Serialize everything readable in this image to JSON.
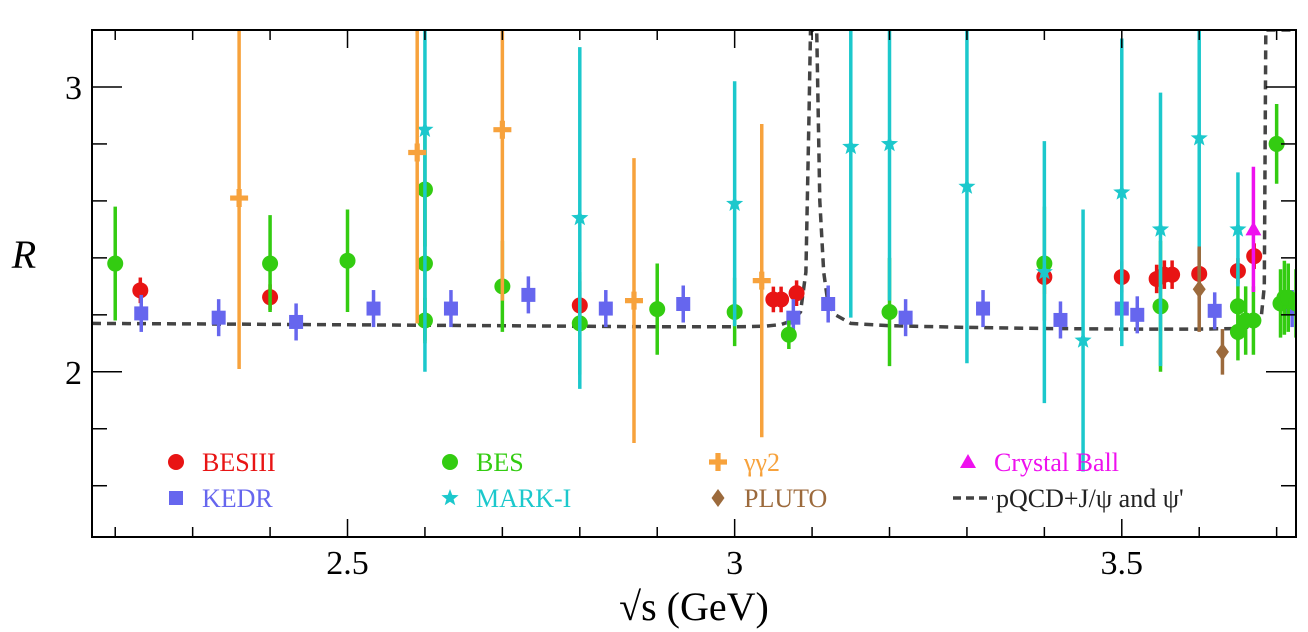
{
  "chart_data": {
    "type": "scatter",
    "title": "",
    "xlabel": "√s (GeV)",
    "ylabel": "R",
    "xlim": [
      2.17,
      3.725
    ],
    "ylim": [
      1.42,
      3.2
    ],
    "xticks": [
      {
        "value": 2.5,
        "label": "2.5"
      },
      {
        "value": 3.0,
        "label": "3"
      },
      {
        "value": 3.5,
        "label": "3.5"
      }
    ],
    "yticks": [
      {
        "value": 2.0,
        "label": "2"
      },
      {
        "value": 3.0,
        "label": "3"
      }
    ],
    "grid": false,
    "legend_position": "bottom",
    "series": [
      {
        "name": "BESIII",
        "color": "#e81414",
        "marker": "circle",
        "points": [
          {
            "x": 2.2324,
            "y": 2.286,
            "err": 0.045
          },
          {
            "x": 2.4,
            "y": 2.262,
            "err": 0.045
          },
          {
            "x": 2.8,
            "y": 2.233,
            "err": 0.085
          },
          {
            "x": 3.05,
            "y": 2.254,
            "err": 0.045
          },
          {
            "x": 3.06,
            "y": 2.254,
            "err": 0.045
          },
          {
            "x": 3.08,
            "y": 2.276,
            "err": 0.045
          },
          {
            "x": 3.4,
            "y": 2.333,
            "err": 0.06
          },
          {
            "x": 3.5,
            "y": 2.333,
            "err": 0.055
          },
          {
            "x": 3.545,
            "y": 2.326,
            "err": 0.05
          },
          {
            "x": 3.555,
            "y": 2.341,
            "err": 0.05
          },
          {
            "x": 3.565,
            "y": 2.341,
            "err": 0.05
          },
          {
            "x": 3.6,
            "y": 2.344,
            "err": 0.09
          },
          {
            "x": 3.65,
            "y": 2.354,
            "err": 0.045
          },
          {
            "x": 3.671,
            "y": 2.406,
            "err": 0.045
          }
        ]
      },
      {
        "name": "KEDR",
        "color": "#6666ee",
        "marker": "square",
        "points": [
          {
            "x": 2.2336,
            "y": 2.205,
            "err": 0.065
          },
          {
            "x": 2.3336,
            "y": 2.19,
            "err": 0.065
          },
          {
            "x": 2.4336,
            "y": 2.175,
            "err": 0.065
          },
          {
            "x": 2.5336,
            "y": 2.222,
            "err": 0.065
          },
          {
            "x": 2.6336,
            "y": 2.222,
            "err": 0.065
          },
          {
            "x": 2.7336,
            "y": 2.27,
            "err": 0.065
          },
          {
            "x": 2.8336,
            "y": 2.222,
            "err": 0.065
          },
          {
            "x": 2.9336,
            "y": 2.238,
            "err": 0.065
          },
          {
            "x": 3.0758,
            "y": 2.19,
            "err": 0.065
          },
          {
            "x": 3.1208,
            "y": 2.238,
            "err": 0.065
          },
          {
            "x": 3.2208,
            "y": 2.19,
            "err": 0.065
          },
          {
            "x": 3.3208,
            "y": 2.222,
            "err": 0.065
          },
          {
            "x": 3.4208,
            "y": 2.182,
            "err": 0.065
          },
          {
            "x": 3.5,
            "y": 2.222,
            "err": 0.065
          },
          {
            "x": 3.52,
            "y": 2.2,
            "err": 0.065
          },
          {
            "x": 3.62,
            "y": 2.214,
            "err": 0.065
          },
          {
            "x": 3.72,
            "y": 2.222,
            "err": 0.065
          }
        ]
      },
      {
        "name": "BES",
        "color": "#33cc11",
        "marker": "circle",
        "points": [
          {
            "x": 2.2,
            "y": 2.38,
            "err": 0.2
          },
          {
            "x": 2.4,
            "y": 2.38,
            "err": 0.17
          },
          {
            "x": 2.5,
            "y": 2.39,
            "err": 0.18
          },
          {
            "x": 2.6,
            "y": 2.64,
            "err": 0.2
          },
          {
            "x": 2.6,
            "y": 2.38,
            "err": 0.27
          },
          {
            "x": 2.6,
            "y": 2.18,
            "err": 0.08
          },
          {
            "x": 2.7,
            "y": 2.3,
            "err": 0.16
          },
          {
            "x": 2.8,
            "y": 2.17,
            "err": 0.18
          },
          {
            "x": 2.9,
            "y": 2.22,
            "err": 0.16
          },
          {
            "x": 3.0,
            "y": 2.21,
            "err": 0.12
          },
          {
            "x": 3.07,
            "y": 2.13,
            "err": 0.05
          },
          {
            "x": 3.2,
            "y": 2.21,
            "err": 0.19
          },
          {
            "x": 3.4,
            "y": 2.38,
            "err": 0.2
          },
          {
            "x": 3.55,
            "y": 2.23,
            "err": 0.23
          },
          {
            "x": 3.65,
            "y": 2.23,
            "err": 0.12
          },
          {
            "x": 3.65,
            "y": 2.14,
            "err": 0.1
          },
          {
            "x": 3.66,
            "y": 2.18,
            "err": 0.12
          },
          {
            "x": 3.67,
            "y": 2.18,
            "err": 0.12
          },
          {
            "x": 3.7,
            "y": 2.8,
            "err": 0.14
          },
          {
            "x": 3.705,
            "y": 2.24,
            "err": 0.12
          },
          {
            "x": 3.71,
            "y": 2.26,
            "err": 0.13
          },
          {
            "x": 3.715,
            "y": 2.26,
            "err": 0.12
          },
          {
            "x": 3.725,
            "y": 2.24,
            "err": 0.12
          }
        ]
      },
      {
        "name": "MARK-I",
        "color": "#1cc8cc",
        "marker": "star",
        "points": [
          {
            "x": 2.6,
            "y": 2.85,
            "err": 0.85
          },
          {
            "x": 2.8,
            "y": 2.54,
            "err": 0.6
          },
          {
            "x": 3.0,
            "y": 2.59,
            "err": 0.43
          },
          {
            "x": 3.15,
            "y": 2.79,
            "err": 0.6
          },
          {
            "x": 3.2,
            "y": 2.8,
            "err": 0.55
          },
          {
            "x": 3.3,
            "y": 2.65,
            "err": 0.62
          },
          {
            "x": 3.4,
            "y": 2.35,
            "err": 0.46
          },
          {
            "x": 3.45,
            "y": 2.11,
            "err": 0.46
          },
          {
            "x": 3.5,
            "y": 2.63,
            "err": 0.54
          },
          {
            "x": 3.55,
            "y": 2.5,
            "err": 0.48
          },
          {
            "x": 3.6,
            "y": 2.82,
            "err": 0.48
          },
          {
            "x": 3.65,
            "y": 2.5,
            "err": 0.2
          }
        ]
      },
      {
        "name": "γγ2",
        "color": "#f7a23c",
        "marker": "cross",
        "points": [
          {
            "x": 2.36,
            "y": 2.61,
            "err": 0.6
          },
          {
            "x": 2.59,
            "y": 2.77,
            "err": 0.6
          },
          {
            "x": 2.7,
            "y": 2.85,
            "err": 0.6
          },
          {
            "x": 2.87,
            "y": 2.25,
            "err": 0.5
          },
          {
            "x": 3.035,
            "y": 2.32,
            "err": 0.55
          }
        ]
      },
      {
        "name": "PLUTO",
        "color": "#9c6a3c",
        "marker": "diamond",
        "points": [
          {
            "x": 3.6,
            "y": 2.29,
            "err": 0.15
          },
          {
            "x": 3.63,
            "y": 2.07,
            "err": 0.08
          }
        ]
      },
      {
        "name": "Crystal Ball",
        "color": "#ee11ee",
        "marker": "triangle",
        "points": [
          {
            "x": 3.67,
            "y": 2.5,
            "err": 0.22
          }
        ]
      }
    ],
    "curve": {
      "name": "pQCD+J/ψ and ψ'",
      "color": "#444444",
      "x": [
        2.17,
        2.3,
        2.5,
        2.7,
        2.9,
        3.0,
        3.04,
        3.06,
        3.075,
        3.085,
        3.092,
        3.096,
        3.098,
        3.1,
        3.102,
        3.106,
        3.11,
        3.115,
        3.12,
        3.13,
        3.15,
        3.2,
        3.3,
        3.4,
        3.5,
        3.6,
        3.65,
        3.672,
        3.68,
        3.684,
        3.686,
        3.688,
        3.692,
        3.7,
        3.725
      ],
      "y": [
        2.17,
        2.168,
        2.165,
        2.162,
        2.158,
        2.158,
        2.16,
        2.166,
        2.18,
        2.21,
        2.35,
        2.9,
        3.2,
        3.2,
        3.2,
        3.2,
        2.6,
        2.35,
        2.25,
        2.2,
        2.17,
        2.162,
        2.156,
        2.152,
        2.15,
        2.15,
        2.152,
        2.16,
        2.19,
        2.3,
        3.2,
        3.2,
        3.2,
        3.2,
        3.2
      ]
    }
  }
}
